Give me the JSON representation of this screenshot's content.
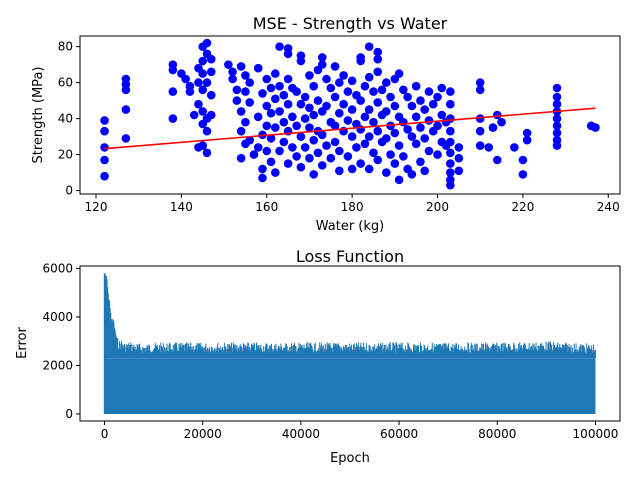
{
  "chart_data": [
    {
      "type": "scatter",
      "title": "MSE - Strength vs Water",
      "xlabel": "Water (kg)",
      "ylabel": "Strength (MPa)",
      "xlim": [
        116.25,
        242.75
      ],
      "ylim": [
        -1.9,
        85.9
      ],
      "xticks": [
        120,
        140,
        160,
        180,
        200,
        220,
        240
      ],
      "yticks": [
        0,
        20,
        40,
        60,
        80
      ],
      "grid": false,
      "scatter_color": "#0000ff",
      "points": [
        [
          122,
          39
        ],
        [
          122,
          33
        ],
        [
          122,
          24
        ],
        [
          122,
          17
        ],
        [
          122,
          8
        ],
        [
          127,
          62
        ],
        [
          127,
          59
        ],
        [
          127,
          56
        ],
        [
          127,
          45
        ],
        [
          127,
          29
        ],
        [
          138,
          70
        ],
        [
          138,
          67
        ],
        [
          138,
          55
        ],
        [
          138,
          40
        ],
        [
          140,
          65
        ],
        [
          141,
          62
        ],
        [
          142,
          58
        ],
        [
          142,
          55
        ],
        [
          143,
          42
        ],
        [
          144,
          68
        ],
        [
          144,
          60
        ],
        [
          144,
          48
        ],
        [
          144,
          24
        ],
        [
          145,
          80
        ],
        [
          145,
          72
        ],
        [
          145,
          65
        ],
        [
          145,
          56
        ],
        [
          145,
          44
        ],
        [
          145,
          37
        ],
        [
          145,
          25
        ],
        [
          146,
          82
        ],
        [
          146,
          76
        ],
        [
          146,
          60
        ],
        [
          146,
          40
        ],
        [
          146,
          33
        ],
        [
          146,
          21
        ],
        [
          147,
          73
        ],
        [
          147,
          66
        ],
        [
          147,
          53
        ],
        [
          147,
          42
        ],
        [
          151,
          70
        ],
        [
          152,
          66
        ],
        [
          152,
          62
        ],
        [
          153,
          56
        ],
        [
          153,
          50
        ],
        [
          154,
          69
        ],
        [
          154,
          44
        ],
        [
          154,
          33
        ],
        [
          154,
          18
        ],
        [
          155,
          64
        ],
        [
          155,
          55
        ],
        [
          155,
          38
        ],
        [
          155,
          26
        ],
        [
          156,
          60
        ],
        [
          156,
          49
        ],
        [
          156,
          28
        ],
        [
          157,
          20
        ],
        [
          158,
          68
        ],
        [
          158,
          41
        ],
        [
          158,
          24
        ],
        [
          159,
          54
        ],
        [
          159,
          31
        ],
        [
          159,
          12
        ],
        [
          159,
          7
        ],
        [
          160,
          62
        ],
        [
          160,
          47
        ],
        [
          160,
          36
        ],
        [
          160,
          22
        ],
        [
          161,
          57
        ],
        [
          161,
          43
        ],
        [
          161,
          29
        ],
        [
          161,
          16
        ],
        [
          162,
          65
        ],
        [
          162,
          51
        ],
        [
          162,
          35
        ],
        [
          162,
          10
        ],
        [
          163,
          80
        ],
        [
          163,
          58
        ],
        [
          163,
          44
        ],
        [
          163,
          22
        ],
        [
          164,
          53
        ],
        [
          164,
          38
        ],
        [
          164,
          27
        ],
        [
          165,
          79
        ],
        [
          165,
          76
        ],
        [
          165,
          62
        ],
        [
          165,
          48
        ],
        [
          165,
          33
        ],
        [
          165,
          15
        ],
        [
          166,
          57
        ],
        [
          166,
          41
        ],
        [
          166,
          24
        ],
        [
          167,
          55
        ],
        [
          167,
          36
        ],
        [
          167,
          19
        ],
        [
          168,
          75
        ],
        [
          168,
          72
        ],
        [
          168,
          48
        ],
        [
          168,
          30
        ],
        [
          168,
          13
        ],
        [
          169,
          52
        ],
        [
          169,
          40
        ],
        [
          169,
          24
        ],
        [
          170,
          64
        ],
        [
          170,
          46
        ],
        [
          170,
          35
        ],
        [
          170,
          18
        ],
        [
          171,
          58
        ],
        [
          171,
          42
        ],
        [
          171,
          28
        ],
        [
          171,
          9
        ],
        [
          172,
          67
        ],
        [
          172,
          50
        ],
        [
          172,
          33
        ],
        [
          172,
          21
        ],
        [
          173,
          74
        ],
        [
          173,
          70
        ],
        [
          173,
          44
        ],
        [
          173,
          31
        ],
        [
          173,
          14
        ],
        [
          174,
          62
        ],
        [
          174,
          47
        ],
        [
          174,
          25
        ],
        [
          175,
          57
        ],
        [
          175,
          38
        ],
        [
          175,
          18
        ],
        [
          176,
          69
        ],
        [
          176,
          52
        ],
        [
          176,
          36
        ],
        [
          176,
          27
        ],
        [
          177,
          60
        ],
        [
          177,
          43
        ],
        [
          177,
          22
        ],
        [
          177,
          11
        ],
        [
          178,
          64
        ],
        [
          178,
          48
        ],
        [
          178,
          33
        ],
        [
          179,
          55
        ],
        [
          179,
          39
        ],
        [
          179,
          19
        ],
        [
          180,
          61
        ],
        [
          180,
          45
        ],
        [
          180,
          30
        ],
        [
          180,
          12
        ],
        [
          181,
          53
        ],
        [
          181,
          37
        ],
        [
          181,
          24
        ],
        [
          182,
          74
        ],
        [
          182,
          72
        ],
        [
          182,
          50
        ],
        [
          182,
          34
        ],
        [
          182,
          15
        ],
        [
          183,
          58
        ],
        [
          183,
          41
        ],
        [
          183,
          26
        ],
        [
          184,
          80
        ],
        [
          184,
          63
        ],
        [
          184,
          45
        ],
        [
          184,
          30
        ],
        [
          184,
          12
        ],
        [
          185,
          55
        ],
        [
          185,
          38
        ],
        [
          185,
          21
        ],
        [
          186,
          77
        ],
        [
          186,
          73
        ],
        [
          186,
          66
        ],
        [
          186,
          49
        ],
        [
          186,
          33
        ],
        [
          186,
          17
        ],
        [
          187,
          56
        ],
        [
          187,
          42
        ],
        [
          187,
          27
        ],
        [
          188,
          60
        ],
        [
          188,
          44
        ],
        [
          188,
          29
        ],
        [
          188,
          10
        ],
        [
          189,
          52
        ],
        [
          189,
          36
        ],
        [
          189,
          20
        ],
        [
          190,
          62
        ],
        [
          190,
          47
        ],
        [
          190,
          32
        ],
        [
          190,
          15
        ],
        [
          191,
          65
        ],
        [
          191,
          41
        ],
        [
          191,
          25
        ],
        [
          191,
          6
        ],
        [
          192,
          56
        ],
        [
          192,
          38
        ],
        [
          192,
          19
        ],
        [
          193,
          52
        ],
        [
          193,
          34
        ],
        [
          193,
          12
        ],
        [
          194,
          47
        ],
        [
          194,
          30
        ],
        [
          194,
          9
        ],
        [
          195,
          58
        ],
        [
          195,
          41
        ],
        [
          195,
          26
        ],
        [
          196,
          50
        ],
        [
          196,
          35
        ],
        [
          196,
          16
        ],
        [
          197,
          45
        ],
        [
          197,
          29
        ],
        [
          197,
          11
        ],
        [
          198,
          55
        ],
        [
          198,
          39
        ],
        [
          198,
          22
        ],
        [
          199,
          48
        ],
        [
          199,
          33
        ],
        [
          200,
          52
        ],
        [
          200,
          36
        ],
        [
          200,
          20
        ],
        [
          201,
          57
        ],
        [
          201,
          42
        ],
        [
          201,
          27
        ],
        [
          202,
          38
        ],
        [
          202,
          25
        ],
        [
          203,
          55
        ],
        [
          203,
          48
        ],
        [
          203,
          40
        ],
        [
          203,
          33
        ],
        [
          203,
          27
        ],
        [
          203,
          21
        ],
        [
          203,
          15
        ],
        [
          203,
          10
        ],
        [
          203,
          6
        ],
        [
          203,
          3
        ],
        [
          205,
          24
        ],
        [
          205,
          18
        ],
        [
          205,
          11
        ],
        [
          210,
          60
        ],
        [
          210,
          56
        ],
        [
          210,
          40
        ],
        [
          210,
          33
        ],
        [
          210,
          25
        ],
        [
          212,
          24
        ],
        [
          213,
          35
        ],
        [
          214,
          42
        ],
        [
          214,
          17
        ],
        [
          215,
          38
        ],
        [
          218,
          24
        ],
        [
          220,
          17
        ],
        [
          220,
          9
        ],
        [
          221,
          32
        ],
        [
          221,
          28
        ],
        [
          228,
          57
        ],
        [
          228,
          52
        ],
        [
          228,
          48
        ],
        [
          228,
          44
        ],
        [
          228,
          40
        ],
        [
          228,
          36
        ],
        [
          228,
          32
        ],
        [
          228,
          28
        ],
        [
          228,
          25
        ],
        [
          236,
          36
        ],
        [
          237,
          35
        ]
      ],
      "regression_line": {
        "color": "#ff0000",
        "x": [
          122,
          237
        ],
        "y": [
          23.3,
          45.8
        ]
      }
    },
    {
      "type": "line",
      "title": "Loss Function",
      "xlabel": "Epoch",
      "ylabel": "Error",
      "xlim": [
        -5000,
        105000
      ],
      "ylim": [
        -290,
        6100
      ],
      "xticks": [
        0,
        20000,
        40000,
        60000,
        80000,
        100000
      ],
      "yticks": [
        0,
        2000,
        4000,
        6000
      ],
      "grid": false,
      "line_color": "#1f77b4",
      "baseline": 0,
      "x_end": 100000,
      "envelope": {
        "x": [
          0,
          300,
          500,
          800,
          1000,
          1200,
          1500,
          1800,
          2000,
          2200,
          2500,
          3000,
          3500,
          4000,
          5000,
          6000,
          8000,
          10000,
          20000,
          40000,
          60000,
          80000,
          90000,
          100000
        ],
        "peak": [
          5800,
          5750,
          5650,
          4900,
          4800,
          4300,
          3900,
          3950,
          3700,
          3450,
          3200,
          3050,
          3100,
          2950,
          3000,
          2950,
          2900,
          2950,
          2950,
          2950,
          2950,
          2950,
          3000,
          2900
        ]
      },
      "trough_level": 2300
    }
  ]
}
